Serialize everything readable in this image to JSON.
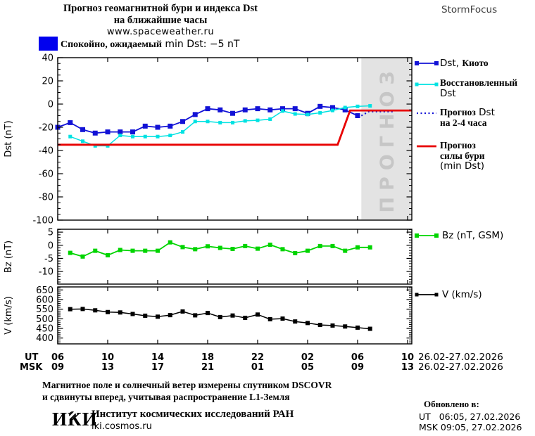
{
  "header": {
    "title_line1": "Прогноз геомагнитной бури и индекса Dst",
    "title_line2": "на ближайшие часы",
    "url": "www.spaceweather.ru",
    "brand": "StormFocus"
  },
  "status": {
    "swatch_color": "#0101ee",
    "text_cyr": "Спокойно, ожидаемый",
    "text_lat": "min Dst: −5 nT"
  },
  "legend": {
    "kyoto_lat": "Dst,",
    "kyoto_cyr": "Киото",
    "restored_line1": "Восстановленный",
    "restored_line2": "Dst",
    "fdst_line1_cyr": "Прогноз",
    "fdst_line1_lat": "Dst",
    "fdst_line2": "на 2-4 часа",
    "storm_line1": "Прогноз",
    "storm_line2": "силы бури",
    "storm_line3": "(min Dst)",
    "bz_label": "Bz (nT, GSM)",
    "v_label": "V (km/s)"
  },
  "footer": {
    "note_line1": "Магнитное поле и солнечный ветер измерены спутником DSCOVR",
    "note_line2": "и сдвинуты вперед, учитывая распространение L1-Земля",
    "logo": "ИКИ",
    "institute": "Институт космических исследований РАН",
    "site": "iki.cosmos.ru",
    "updated_label": "Обновлено в:",
    "updated_ut": "UT   06:05, 27.02.2026",
    "updated_msk": "MSK 09:05, 27.02.2026"
  },
  "chart_data": {
    "type": "line",
    "x_axis": {
      "ut_label": "UT",
      "msk_label": "MSK",
      "tick_hour_offsets": [
        0,
        4,
        8,
        12,
        16,
        20,
        24,
        28
      ],
      "ut_ticks": [
        "06",
        "10",
        "14",
        "18",
        "22",
        "02",
        "06",
        "10"
      ],
      "msk_ticks": [
        "09",
        "13",
        "17",
        "21",
        "01",
        "05",
        "09",
        "13"
      ],
      "date_label": "26.02-27.02.2026",
      "span_hours": 28.34,
      "start_time_ut": "06:00 26.02.2026"
    },
    "panels": [
      {
        "id": "dst",
        "ylabel": "Dst (nT)",
        "ylim": [
          -100,
          40
        ],
        "yticks": [
          40,
          20,
          0,
          -20,
          -40,
          -60,
          -80,
          -100
        ],
        "minor_step": 5,
        "forecast_region": {
          "start_offset_hours": 24.3,
          "end_offset_hours": 28.34,
          "label": "ПРОГНОЗ",
          "fill": "#e3e3e3",
          "text_color": "#c6c6c6"
        },
        "series": [
          {
            "name": "Dst, Киото",
            "color": "#1212d6",
            "marker": "square",
            "t0_offset_hours": 0,
            "step_hours": 1,
            "values": [
              -20,
              -16,
              -22,
              -25,
              -24,
              -24,
              -24,
              -19,
              -20,
              -19,
              -15,
              -9,
              -4,
              -5,
              -8,
              -5,
              -4,
              -5,
              -4,
              -4,
              -8,
              -2,
              -3,
              -5,
              -10
            ]
          },
          {
            "name": "Восстановленный Dst",
            "color": "#00e2e2",
            "marker": "square",
            "t0_offset_hours": 1,
            "step_hours": 1,
            "values": [
              -28,
              -32,
              -36,
              -36,
              -27,
              -28,
              -28,
              -28,
              -27,
              -24,
              -15,
              -15,
              -16,
              -16,
              -14.5,
              -14,
              -13,
              -6,
              -8.5,
              -9,
              -7.5,
              -5.5,
              -3,
              -2,
              -1.5
            ]
          },
          {
            "name": "Прогноз Dst на 2-4 часа",
            "color": "#1212d6",
            "style": "dotted",
            "points": [
              [
                24.3,
                -10
              ],
              [
                24.9,
                -6.5
              ],
              [
                27.0,
                -6.5
              ]
            ]
          },
          {
            "name": "Прогноз силы бури (min Dst)",
            "color": "#e80000",
            "style": "solid",
            "points": [
              [
                0,
                -35
              ],
              [
                22.4,
                -35
              ],
              [
                23.4,
                -5.5
              ],
              [
                28.34,
                -5.5
              ]
            ]
          }
        ]
      },
      {
        "id": "bz",
        "ylabel": "Bz (nT)",
        "ylim": [
          -14.8,
          6.1
        ],
        "yticks": [
          5,
          0,
          -5,
          -10
        ],
        "minor_step": 1,
        "series": [
          {
            "name": "Bz (nT, GSM)",
            "color": "#00d400",
            "marker": "square",
            "t0_offset_hours": 1,
            "step_hours": 1,
            "values": [
              -2.9,
              -4.3,
              -2.1,
              -3.8,
              -1.8,
              -2.1,
              -2.1,
              -2.1,
              1.1,
              -0.7,
              -1.5,
              -0.4,
              -1.0,
              -1.4,
              -0.3,
              -1.3,
              0.2,
              -1.5,
              -3.0,
              -2.1,
              -0.3,
              -0.3,
              -2.1,
              -0.8,
              -0.8
            ]
          }
        ]
      },
      {
        "id": "v",
        "ylabel": "V (km/s)",
        "ylim": [
          369.6,
          665.7
        ],
        "yticks": [
          650,
          600,
          550,
          500,
          450,
          400
        ],
        "minor_step": 10,
        "series": [
          {
            "name": "V (km/s)",
            "color": "#000000",
            "marker": "square",
            "t0_offset_hours": 1,
            "step_hours": 1,
            "values": [
              550,
              551,
              544,
              535,
              533,
              525,
              516,
              511,
              519,
              538,
              518,
              530,
              509,
              517,
              505,
              522,
              498,
              501,
              486,
              478,
              468,
              465,
              460,
              454,
              448
            ]
          }
        ]
      }
    ]
  }
}
